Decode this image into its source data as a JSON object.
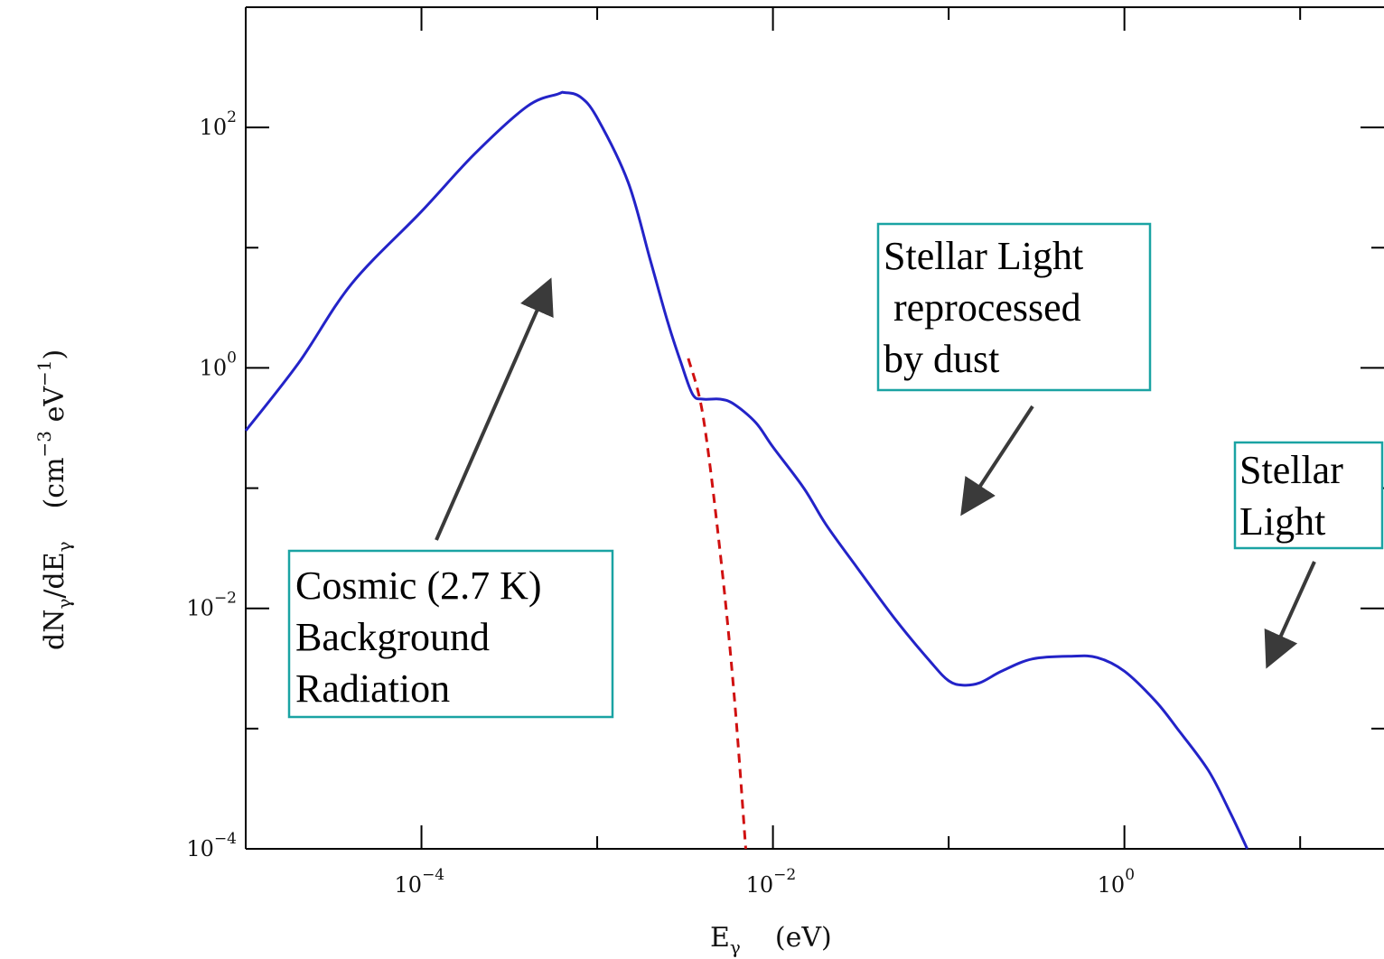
{
  "chart_data": {
    "type": "line",
    "title": "",
    "xlabel": {
      "main": "E",
      "sub": "γ",
      "unit": "(eV)"
    },
    "ylabel": {
      "main": "dN",
      "sub1": "γ",
      "mid": "/dE",
      "sub2": "γ",
      "unit_base": "(cm",
      "unit_exp1": "−3",
      "unit_mid": " eV",
      "unit_exp2": "−1",
      "unit_close": ")"
    },
    "xscale": "log",
    "yscale": "log",
    "xlim": [
      1e-05,
      30
    ],
    "ylim": [
      0.0001,
      1000
    ],
    "grid": false,
    "x_ticks": [
      {
        "value": 0.0001,
        "base": "10",
        "exp": "−4"
      },
      {
        "value": 0.01,
        "base": "10",
        "exp": "−2"
      },
      {
        "value": 1,
        "base": "10",
        "exp": "0"
      }
    ],
    "y_ticks": [
      {
        "value": 0.0001,
        "base": "10",
        "exp": "−4"
      },
      {
        "value": 0.01,
        "base": "10",
        "exp": "−2"
      },
      {
        "value": 1,
        "base": "10",
        "exp": "0"
      },
      {
        "value": 100,
        "base": "10",
        "exp": "2"
      }
    ],
    "series": [
      {
        "style": "solid",
        "color": "#2323c8",
        "x": [
          1e-05,
          2e-05,
          4e-05,
          0.0001,
          0.0002,
          0.0004,
          0.0006,
          0.00065,
          0.0008,
          0.001,
          0.0015,
          0.002,
          0.0025,
          0.003,
          0.0035,
          0.004,
          0.005,
          0.006,
          0.008,
          0.01,
          0.015,
          0.02,
          0.03,
          0.05,
          0.08,
          0.1,
          0.12,
          0.15,
          0.2,
          0.3,
          0.5,
          0.7,
          1,
          1.5,
          2,
          3,
          4,
          5
        ],
        "y": [
          0.3,
          1.1,
          5,
          20,
          60,
          150,
          190,
          195,
          180,
          120,
          35,
          8,
          2.5,
          1.1,
          0.6,
          0.55,
          0.55,
          0.5,
          0.35,
          0.22,
          0.1,
          0.05,
          0.022,
          0.008,
          0.0035,
          0.0025,
          0.0023,
          0.0024,
          0.003,
          0.0038,
          0.004,
          0.0039,
          0.003,
          0.0017,
          0.001,
          0.00045,
          0.0002,
          0.0001
        ]
      },
      {
        "style": "dashed",
        "color": "#d01010",
        "x": [
          0.0033,
          0.004,
          0.005,
          0.006,
          0.007
        ],
        "y": [
          1.2,
          0.4,
          0.03,
          0.002,
          0.0001
        ]
      }
    ],
    "annotations": [
      {
        "lines": [
          "Cosmic  (2.7 K)",
          "Background",
          "Radiation"
        ]
      },
      {
        "lines": [
          "Stellar Light",
          " reprocessed",
          "by dust"
        ]
      },
      {
        "lines": [
          "Stellar",
          "Light"
        ]
      }
    ]
  }
}
